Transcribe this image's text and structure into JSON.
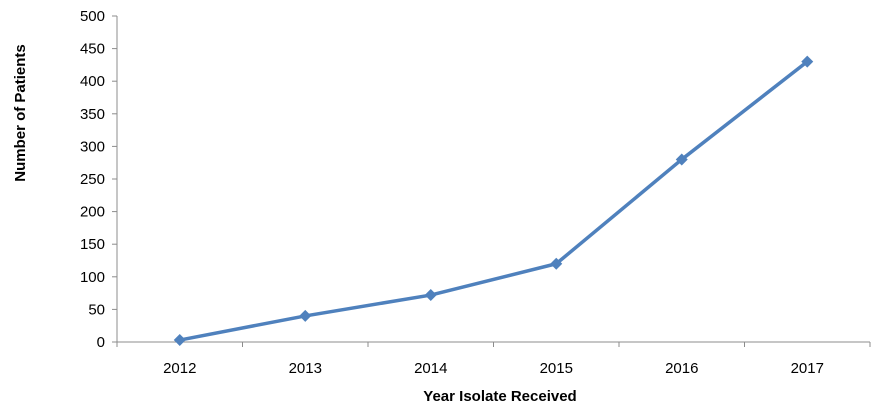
{
  "chart_data": {
    "type": "line",
    "x": [
      "2012",
      "2013",
      "2014",
      "2015",
      "2016",
      "2017"
    ],
    "series": [
      {
        "values": [
          3,
          40,
          72,
          120,
          280,
          430
        ]
      }
    ],
    "xlabel": "Year Isolate Received",
    "ylabel": "Number of Patients",
    "ylim": [
      0,
      500
    ],
    "yticks": [
      0,
      50,
      100,
      150,
      200,
      250,
      300,
      350,
      400,
      450,
      500
    ],
    "grid": false,
    "legend": "none",
    "marker": "diamond",
    "line_color": "#4f81bd"
  }
}
